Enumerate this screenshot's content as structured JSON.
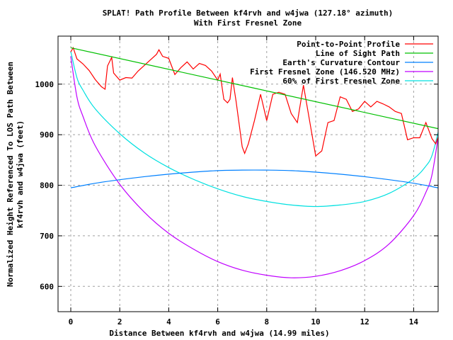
{
  "chart_data": {
    "type": "line",
    "title": [
      "SPLAT! Path Profile Between kf4rvh and w4jwa (127.18° azimuth)",
      "With First Fresnel Zone"
    ],
    "xlabel": "Distance Between kf4rvh and w4jwa (14.99 miles)",
    "ylabel": [
      "Normalized Height Referenced To LOS Path Between",
      "kf4rvh and w4jwa (feet)"
    ],
    "xlim": [
      -0.52,
      15.0
    ],
    "ylim": [
      550,
      1095
    ],
    "grid": true,
    "legend_position": "top-right",
    "x_ticks": [
      0,
      2,
      4,
      6,
      8,
      10,
      12,
      14
    ],
    "y_ticks": [
      600,
      700,
      800,
      900,
      1000
    ],
    "series": [
      {
        "name": "Point-to-Point Profile",
        "color": "#ff0000",
        "smooth": false,
        "x": [
          0,
          0.1,
          0.25,
          0.5,
          0.75,
          1.0,
          1.25,
          1.4,
          1.5,
          1.67,
          1.75,
          2.0,
          2.25,
          2.5,
          2.75,
          3.0,
          3.25,
          3.5,
          3.6,
          3.75,
          4.0,
          4.25,
          4.5,
          4.75,
          5.0,
          5.25,
          5.5,
          5.75,
          6.0,
          6.1,
          6.25,
          6.4,
          6.5,
          6.6,
          6.75,
          7.0,
          7.1,
          7.25,
          7.5,
          7.75,
          8.0,
          8.25,
          8.5,
          8.75,
          9.0,
          9.25,
          9.5,
          9.75,
          10.0,
          10.25,
          10.5,
          10.75,
          11.0,
          11.25,
          11.5,
          11.75,
          12.0,
          12.25,
          12.5,
          12.75,
          13.0,
          13.25,
          13.5,
          13.75,
          14.0,
          14.25,
          14.5,
          14.75,
          14.9,
          15.0
        ],
        "y": [
          1064,
          1072,
          1050,
          1040,
          1027,
          1009,
          995,
          990,
          1036,
          1053,
          1022,
          1008,
          1013,
          1012,
          1026,
          1037,
          1048,
          1059,
          1068,
          1055,
          1051,
          1019,
          1033,
          1044,
          1030,
          1041,
          1037,
          1026,
          1008,
          1020,
          970,
          963,
          970,
          1013,
          966,
          876,
          863,
          882,
          928,
          980,
          928,
          980,
          984,
          980,
          942,
          924,
          998,
          928,
          858,
          868,
          924,
          928,
          975,
          970,
          946,
          951,
          966,
          955,
          966,
          961,
          955,
          946,
          942,
          890,
          894,
          894,
          924,
          892,
          882,
          895
        ]
      },
      {
        "name": "Line of Sight Path",
        "color": "#00c000",
        "smooth": true,
        "x": [
          0,
          15
        ],
        "y": [
          1072,
          912
        ]
      },
      {
        "name": "Earth's Curvature Contour",
        "color": "#0080ff",
        "smooth": true,
        "x": [
          0,
          1,
          2,
          3,
          4,
          5,
          6,
          7,
          8,
          9,
          10,
          11,
          12,
          13,
          14,
          15
        ],
        "y": [
          795,
          804,
          811,
          817,
          822,
          826,
          829,
          830,
          830,
          829,
          826,
          822,
          817,
          811,
          804,
          795
        ]
      },
      {
        "name": "First Fresnel Zone (146.520 MHz)",
        "color": "#c000ff",
        "smooth": true,
        "x": [
          0,
          0.25,
          0.5,
          1,
          2,
          3,
          4,
          5,
          6,
          7,
          8,
          9,
          10,
          11,
          12,
          13,
          14,
          14.5,
          14.75,
          15
        ],
        "y": [
          1055,
          975,
          936,
          878,
          802,
          747,
          705,
          674,
          649,
          632,
          622,
          617,
          620,
          631,
          651,
          684,
          740,
          786,
          821,
          895
        ]
      },
      {
        "name": "60% of First Fresnel Zone",
        "color": "#00e0e0",
        "smooth": true,
        "x": [
          0,
          0.25,
          0.5,
          1,
          2,
          3,
          4,
          5,
          6,
          7,
          8,
          9,
          10,
          11,
          12,
          13,
          14,
          14.5,
          14.75,
          15
        ],
        "y": [
          1065,
          1013,
          988,
          951,
          902,
          864,
          835,
          812,
          793,
          778,
          768,
          761,
          758,
          761,
          768,
          784,
          813,
          838,
          859,
          905
        ]
      }
    ]
  }
}
